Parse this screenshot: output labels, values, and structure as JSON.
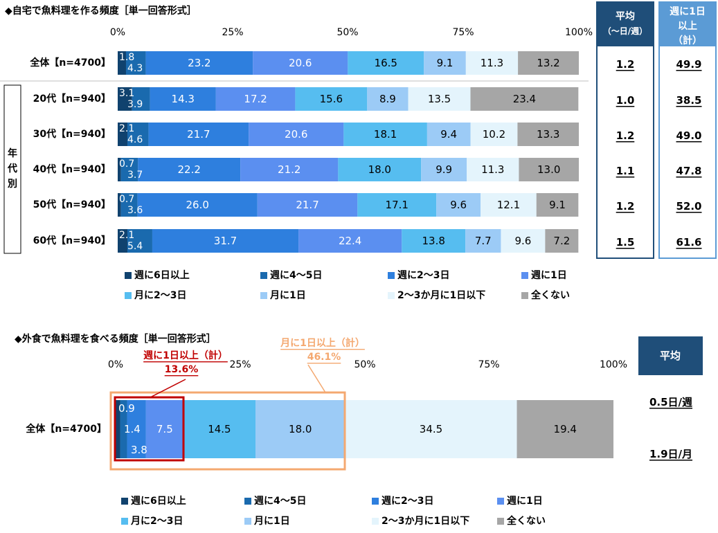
{
  "colors": {
    "cat": [
      "#10426e",
      "#1a6aae",
      "#2e7fde",
      "#5b8ff0",
      "#56bdf0",
      "#9ccbf6",
      "#e4f4fc",
      "#a6a6a6"
    ],
    "navy": "#1f4e79",
    "blue_border": "#5b9bd5",
    "red": "#c00000",
    "orange": "#f4a870"
  },
  "chart_data": [
    {
      "type": "bar",
      "orientation": "horizontal-stacked-percent",
      "title": "◆自宅で魚料理を作る頻度［単一回答形式］",
      "xlim": [
        0,
        100
      ],
      "ticks": [
        "0%",
        "25%",
        "50%",
        "75%",
        "100%"
      ],
      "group_label": "年代別",
      "legend": [
        "週に6日以上",
        "週に4～5日",
        "週に2～3日",
        "週に1日",
        "月に2～3日",
        "月に1日",
        "2～3か月に1日以下",
        "全くない"
      ],
      "categories": [
        "全体【n=4700】",
        "20代【n=940】",
        "30代【n=940】",
        "40代【n=940】",
        "50代【n=940】",
        "60代【n=940】"
      ],
      "values": [
        [
          "1.8",
          "4.3",
          "23.2",
          "20.6",
          "16.5",
          "9.1",
          "11.3",
          "13.2"
        ],
        [
          "3.1",
          "3.9",
          "14.3",
          "17.2",
          "15.6",
          "8.9",
          "13.5",
          "23.4"
        ],
        [
          "2.1",
          "4.6",
          "21.7",
          "20.6",
          "18.1",
          "9.4",
          "10.2",
          "13.3"
        ],
        [
          "0.7",
          "3.7",
          "22.2",
          "21.2",
          "18.0",
          "9.9",
          "11.3",
          "13.0"
        ],
        [
          "0.7",
          "3.6",
          "26.0",
          "21.7",
          "17.1",
          "9.6",
          "12.1",
          "9.1"
        ],
        [
          "2.1",
          "5.4",
          "31.7",
          "22.4",
          "13.8",
          "7.7",
          "9.6",
          "7.2"
        ]
      ],
      "side_columns": [
        {
          "header": [
            "平均",
            "（～日/週）"
          ],
          "values": [
            "1.2",
            "1.0",
            "1.2",
            "1.1",
            "1.2",
            "1.5"
          ]
        },
        {
          "header": [
            "週に1日",
            "以上",
            "（計）"
          ],
          "values": [
            "49.9",
            "38.5",
            "49.0",
            "47.8",
            "52.0",
            "61.6"
          ]
        }
      ]
    },
    {
      "type": "bar",
      "orientation": "horizontal-stacked-percent",
      "title": "◆外食で魚料理を食べる頻度［単一回答形式］",
      "xlim": [
        0,
        100
      ],
      "ticks": [
        "0%",
        "25%",
        "50%",
        "75%",
        "100%"
      ],
      "legend": [
        "週に6日以上",
        "週に4～5日",
        "週に2～3日",
        "週に1日",
        "月に2～3日",
        "月に1日",
        "2～3か月に1日以下",
        "全くない"
      ],
      "categories": [
        "全体【n=4700】"
      ],
      "values": [
        [
          "0.9",
          "1.4",
          "3.8",
          "7.5",
          "14.5",
          "18.0",
          "34.5",
          "19.4"
        ]
      ],
      "annotations": [
        {
          "label": "週に1日以上（計）",
          "value": "13.6%"
        },
        {
          "label": "月に1日以上（計）",
          "value": "46.1%"
        }
      ],
      "side_column": {
        "header": "平均",
        "values": [
          "0.5日/週",
          "1.9日/月"
        ]
      }
    }
  ]
}
